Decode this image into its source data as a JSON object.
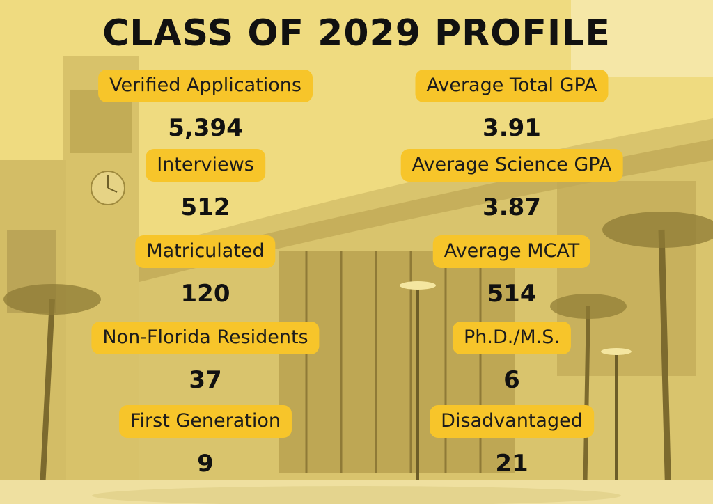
{
  "title": "CLASS OF 2029 PROFILE",
  "colors": {
    "accent": "#f7c52a",
    "background": "#ecd779",
    "text": "#111111"
  },
  "stats_left": [
    {
      "label": "Verified Applications",
      "value": "5,394"
    },
    {
      "label": "Interviews",
      "value": "512"
    },
    {
      "label": "Matriculated",
      "value": "120"
    },
    {
      "label": "Non-Florida Residents",
      "value": "37"
    },
    {
      "label": "First Generation",
      "value": "9"
    }
  ],
  "stats_right": [
    {
      "label": "Average Total GPA",
      "value": "3.91"
    },
    {
      "label": "Average Science GPA",
      "value": "3.87"
    },
    {
      "label": "Average MCAT",
      "value": "514"
    },
    {
      "label": "Ph.D./M.S.",
      "value": "6"
    },
    {
      "label": "Disadvantaged",
      "value": "21"
    }
  ]
}
